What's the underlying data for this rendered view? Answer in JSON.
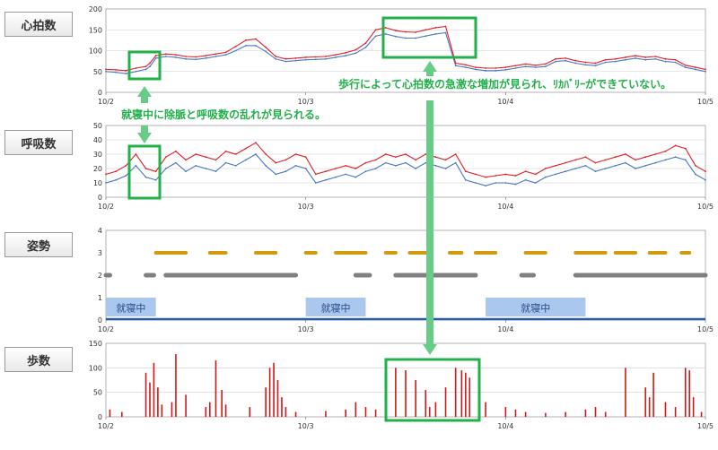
{
  "colors": {
    "heart_rate": "#e0202a",
    "heart_rate_alt": "#4a78c0",
    "posture_upper": "#d39a10",
    "posture_lower": "#808080",
    "posture_base": "#2a5ca8",
    "sleep_box": "#aac8ee",
    "steps": "#d01818",
    "highlight": "#22b04a",
    "arrow": "#66cc88"
  },
  "labels": {
    "heart": "心拍数",
    "resp": "呼吸数",
    "posture": "姿勢",
    "steps": "歩数"
  },
  "annotations": {
    "left": "就寝中に除脈と呼吸数の乱れが見られる。",
    "right": "歩行によって心拍数の急激な増加が見られ、ﾘｶﾊﾞﾘｰができていない。"
  },
  "chart_data": [
    {
      "type": "line",
      "key": "heart",
      "x_ticks": [
        "10/2",
        "10/3",
        "10/4",
        "10/5"
      ],
      "y_ticks": [
        0,
        50,
        100,
        150,
        200
      ],
      "ylim": [
        0,
        200
      ],
      "grid": true,
      "x": [
        0,
        0.05,
        0.1,
        0.15,
        0.2,
        0.22,
        0.25,
        0.3,
        0.35,
        0.4,
        0.45,
        0.5,
        0.55,
        0.6,
        0.65,
        0.7,
        0.75,
        0.8,
        0.85,
        0.9,
        0.95,
        1.0,
        1.05,
        1.1,
        1.15,
        1.2,
        1.25,
        1.3,
        1.35,
        1.4,
        1.45,
        1.5,
        1.55,
        1.6,
        1.65,
        1.7,
        1.75,
        1.8,
        1.85,
        1.9,
        1.95,
        2.0,
        2.05,
        2.1,
        2.15,
        2.2,
        2.25,
        2.3,
        2.35,
        2.4,
        2.45,
        2.5,
        2.55,
        2.6,
        2.65,
        2.7,
        2.75,
        2.8,
        2.85,
        2.9,
        2.95,
        3.0
      ],
      "series": [
        {
          "values": [
            55,
            54,
            52,
            58,
            62,
            70,
            88,
            92,
            90,
            86,
            85,
            88,
            92,
            96,
            110,
            125,
            128,
            108,
            86,
            80,
            82,
            84,
            85,
            86,
            90,
            95,
            102,
            118,
            150,
            155,
            148,
            145,
            144,
            150,
            155,
            158,
            70,
            66,
            60,
            58,
            58,
            60,
            64,
            68,
            65,
            68,
            80,
            82,
            76,
            72,
            70,
            78,
            80,
            84,
            88,
            84,
            86,
            80,
            78,
            65,
            60,
            55
          ]
        },
        {
          "values": [
            50,
            48,
            45,
            50,
            55,
            62,
            82,
            86,
            84,
            80,
            79,
            82,
            86,
            90,
            100,
            112,
            112,
            98,
            80,
            74,
            76,
            78,
            79,
            80,
            84,
            88,
            94,
            108,
            135,
            140,
            134,
            130,
            130,
            135,
            140,
            143,
            64,
            60,
            55,
            52,
            52,
            54,
            58,
            62,
            60,
            62,
            74,
            76,
            70,
            66,
            64,
            72,
            74,
            78,
            82,
            78,
            80,
            74,
            72,
            60,
            55,
            50
          ]
        }
      ]
    },
    {
      "type": "line",
      "key": "resp",
      "x_ticks": [
        "10/2",
        "10/3",
        "10/4",
        "10/5"
      ],
      "y_ticks": [
        0,
        10,
        20,
        30,
        40,
        50
      ],
      "ylim": [
        0,
        50
      ],
      "grid": true,
      "x": [
        0,
        0.05,
        0.1,
        0.15,
        0.2,
        0.25,
        0.3,
        0.35,
        0.4,
        0.45,
        0.5,
        0.55,
        0.6,
        0.65,
        0.7,
        0.75,
        0.8,
        0.85,
        0.9,
        0.95,
        1.0,
        1.05,
        1.1,
        1.15,
        1.2,
        1.25,
        1.3,
        1.35,
        1.4,
        1.45,
        1.5,
        1.55,
        1.6,
        1.65,
        1.7,
        1.75,
        1.8,
        1.85,
        1.9,
        1.95,
        2.0,
        2.05,
        2.1,
        2.15,
        2.2,
        2.25,
        2.3,
        2.35,
        2.4,
        2.45,
        2.5,
        2.55,
        2.6,
        2.65,
        2.7,
        2.75,
        2.8,
        2.85,
        2.9,
        2.95,
        3.0
      ],
      "series": [
        {
          "values": [
            16,
            18,
            22,
            30,
            20,
            18,
            28,
            32,
            26,
            30,
            28,
            26,
            32,
            30,
            34,
            38,
            30,
            24,
            26,
            30,
            28,
            16,
            18,
            20,
            22,
            20,
            24,
            26,
            30,
            28,
            30,
            26,
            30,
            28,
            26,
            30,
            18,
            16,
            14,
            15,
            16,
            15,
            18,
            16,
            20,
            22,
            24,
            26,
            28,
            24,
            26,
            28,
            30,
            26,
            28,
            30,
            32,
            36,
            34,
            22,
            18
          ]
        },
        {
          "values": [
            10,
            12,
            15,
            22,
            14,
            12,
            20,
            24,
            18,
            22,
            20,
            18,
            24,
            22,
            26,
            30,
            22,
            16,
            18,
            22,
            20,
            10,
            12,
            14,
            16,
            14,
            18,
            20,
            24,
            22,
            24,
            20,
            24,
            22,
            20,
            24,
            12,
            10,
            8,
            10,
            10,
            9,
            12,
            10,
            14,
            16,
            18,
            20,
            22,
            18,
            20,
            22,
            24,
            20,
            22,
            24,
            26,
            28,
            26,
            16,
            12
          ]
        }
      ]
    },
    {
      "type": "scatter",
      "key": "posture",
      "x_ticks": [
        "10/2",
        "10/3",
        "10/4",
        "10/5"
      ],
      "y_ticks": [
        0,
        1,
        2,
        3,
        4
      ],
      "ylim": [
        0,
        4
      ],
      "grid": false,
      "upper_segments": [
        [
          0.25,
          0.4
        ],
        [
          0.52,
          0.6
        ],
        [
          0.75,
          0.85
        ],
        [
          1.0,
          1.05
        ],
        [
          1.15,
          1.3
        ],
        [
          1.4,
          1.45
        ],
        [
          1.52,
          1.62
        ],
        [
          1.72,
          1.78
        ],
        [
          1.85,
          1.95
        ],
        [
          2.1,
          2.2
        ],
        [
          2.35,
          2.5
        ],
        [
          2.55,
          2.65
        ],
        [
          2.72,
          2.8
        ],
        [
          2.88,
          2.92
        ]
      ],
      "lower_segments": [
        [
          0.0,
          0.02
        ],
        [
          0.2,
          0.24
        ],
        [
          0.3,
          0.95
        ],
        [
          1.25,
          1.32
        ],
        [
          1.45,
          1.85
        ],
        [
          2.08,
          2.14
        ],
        [
          2.35,
          3.0
        ]
      ],
      "base_value": 0,
      "sleep_periods": [
        [
          0.0,
          0.25
        ],
        [
          1.0,
          1.3
        ],
        [
          1.9,
          2.4
        ]
      ],
      "sleep_label": "就寝中"
    },
    {
      "type": "bar",
      "key": "steps",
      "x_ticks": [
        "10/2",
        "10/3",
        "10/4",
        "10/5"
      ],
      "y_ticks": [
        0,
        50,
        100,
        150
      ],
      "ylim": [
        0,
        150
      ],
      "grid": true,
      "x": [
        0.02,
        0.08,
        0.2,
        0.22,
        0.24,
        0.26,
        0.28,
        0.33,
        0.35,
        0.4,
        0.5,
        0.52,
        0.55,
        0.58,
        0.6,
        0.72,
        0.8,
        0.82,
        0.84,
        0.86,
        0.88,
        0.9,
        0.95,
        1.1,
        1.2,
        1.25,
        1.3,
        1.35,
        1.4,
        1.45,
        1.5,
        1.55,
        1.6,
        1.62,
        1.65,
        1.7,
        1.75,
        1.78,
        1.8,
        1.82,
        1.9,
        2.0,
        2.05,
        2.1,
        2.2,
        2.3,
        2.4,
        2.45,
        2.5,
        2.6,
        2.7,
        2.72,
        2.74,
        2.8,
        2.85,
        2.9,
        2.92,
        2.94,
        2.98
      ],
      "values": [
        15,
        10,
        90,
        70,
        110,
        60,
        25,
        30,
        128,
        45,
        20,
        30,
        115,
        55,
        25,
        20,
        60,
        100,
        110,
        75,
        40,
        20,
        10,
        12,
        15,
        30,
        20,
        15,
        105,
        100,
        95,
        75,
        55,
        20,
        30,
        60,
        100,
        95,
        90,
        80,
        30,
        20,
        15,
        10,
        8,
        10,
        15,
        20,
        10,
        100,
        60,
        40,
        90,
        30,
        20,
        100,
        95,
        40,
        10
      ]
    }
  ]
}
